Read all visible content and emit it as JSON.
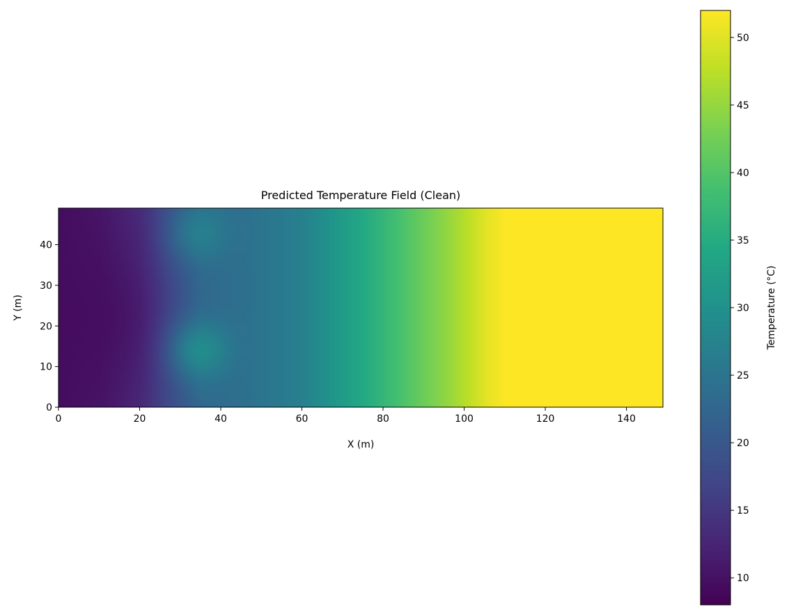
{
  "chart_data": {
    "type": "heatmap",
    "title": "Predicted Temperature Field (Clean)",
    "xlabel": "X (m)",
    "ylabel": "Y (m)",
    "xlim": [
      0,
      149
    ],
    "ylim": [
      0,
      49
    ],
    "xticks": [
      0,
      20,
      40,
      60,
      80,
      100,
      120,
      140
    ],
    "yticks": [
      0,
      10,
      20,
      30,
      40
    ],
    "grid": false,
    "colormap": "viridis",
    "colorbar": {
      "label": "Temperature (°C)",
      "range": [
        8,
        52
      ],
      "ticks": [
        10,
        15,
        20,
        25,
        30,
        35,
        40,
        45,
        50
      ]
    },
    "x_profile": {
      "x": [
        0,
        10,
        20,
        28,
        35,
        45,
        60,
        70,
        80,
        90,
        100,
        105,
        110,
        149
      ],
      "temperature": [
        9.5,
        10.5,
        13.5,
        19,
        23,
        24,
        27,
        32,
        37,
        42,
        47,
        50,
        52,
        52
      ]
    },
    "features": [
      {
        "kind": "cold_core",
        "x": 12,
        "y": 22,
        "temperature": 9
      },
      {
        "kind": "warm_spot",
        "x": 35,
        "y": 14,
        "temperature": 31
      },
      {
        "kind": "warm_spot",
        "x": 35,
        "y": 43,
        "temperature": 28
      }
    ]
  }
}
